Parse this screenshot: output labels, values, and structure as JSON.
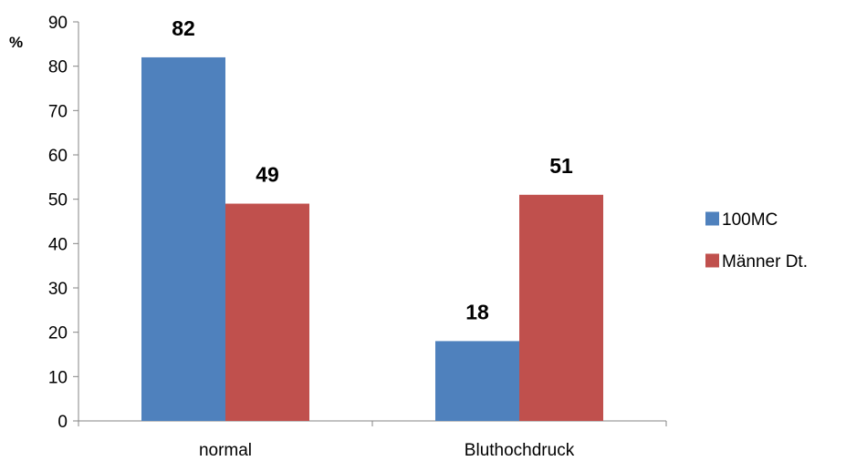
{
  "chart_data": {
    "type": "bar",
    "title": "",
    "xlabel": "",
    "ylabel": "%",
    "ylim": [
      0,
      90
    ],
    "yticks": [
      0,
      10,
      20,
      30,
      40,
      50,
      60,
      70,
      80,
      90
    ],
    "categories": [
      "normal",
      "Bluthochdruck"
    ],
    "series": [
      {
        "name": "100MC",
        "values": [
          82,
          18
        ],
        "color": "#4F81BD"
      },
      {
        "name": "Männer Dt.",
        "values": [
          49,
          51
        ],
        "color": "#C0504D"
      }
    ],
    "data_labels": true,
    "grid": false,
    "legend_position": "right"
  }
}
